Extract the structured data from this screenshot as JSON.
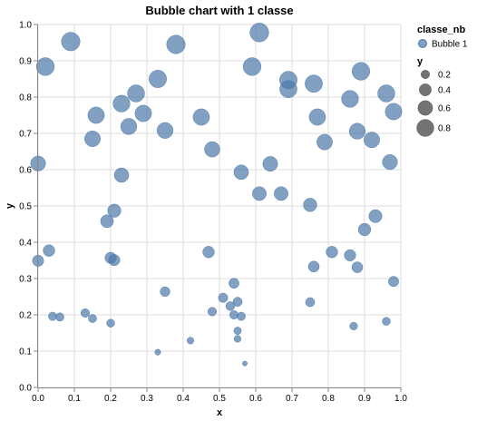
{
  "chart_data": {
    "type": "scatter",
    "title": "Bubble chart with 1 classe",
    "xlabel": "x",
    "ylabel": "y",
    "xlim": [
      0,
      1
    ],
    "ylim": [
      0,
      1
    ],
    "grid": true,
    "x_ticks": [
      "0.0",
      "0.1",
      "0.2",
      "0.3",
      "0.4",
      "0.5",
      "0.6",
      "0.7",
      "0.8",
      "0.9",
      "1.0"
    ],
    "y_ticks": [
      "0.0",
      "0.1",
      "0.2",
      "0.3",
      "0.4",
      "0.5",
      "0.6",
      "0.7",
      "0.8",
      "0.9",
      "1.0"
    ],
    "size_field": "y",
    "color": "#4c78a8",
    "legend": {
      "position": "right",
      "color_title": "classe_nb",
      "color_entries": [
        "Bubble 1"
      ],
      "size_title": "y",
      "size_entries": [
        0.2,
        0.4,
        0.6,
        0.8
      ]
    },
    "series": [
      {
        "name": "Bubble 1",
        "points": [
          [
            0.09,
            0.953
          ],
          [
            0.61,
            0.978
          ],
          [
            0.38,
            0.945
          ],
          [
            0.02,
            0.884
          ],
          [
            0.59,
            0.884
          ],
          [
            0.89,
            0.871
          ],
          [
            0.33,
            0.85
          ],
          [
            0.69,
            0.847
          ],
          [
            0.76,
            0.837
          ],
          [
            0.69,
            0.822
          ],
          [
            0.27,
            0.81
          ],
          [
            0.96,
            0.81
          ],
          [
            0.86,
            0.795
          ],
          [
            0.23,
            0.782
          ],
          [
            0.16,
            0.75
          ],
          [
            0.29,
            0.755
          ],
          [
            0.45,
            0.745
          ],
          [
            0.77,
            0.745
          ],
          [
            0.98,
            0.76
          ],
          [
            0.25,
            0.719
          ],
          [
            0.35,
            0.708
          ],
          [
            0.88,
            0.706
          ],
          [
            0.15,
            0.685
          ],
          [
            0.92,
            0.682
          ],
          [
            0.79,
            0.676
          ],
          [
            0.48,
            0.656
          ],
          [
            0.0,
            0.617
          ],
          [
            0.64,
            0.616
          ],
          [
            0.97,
            0.621
          ],
          [
            0.56,
            0.593
          ],
          [
            0.23,
            0.585
          ],
          [
            0.61,
            0.534
          ],
          [
            0.67,
            0.534
          ],
          [
            0.75,
            0.503
          ],
          [
            0.21,
            0.487
          ],
          [
            0.93,
            0.472
          ],
          [
            0.19,
            0.458
          ],
          [
            0.9,
            0.435
          ],
          [
            0.03,
            0.377
          ],
          [
            0.47,
            0.373
          ],
          [
            0.81,
            0.373
          ],
          [
            0.86,
            0.364
          ],
          [
            0.2,
            0.357
          ],
          [
            0.21,
            0.351
          ],
          [
            0.0,
            0.349
          ],
          [
            0.76,
            0.333
          ],
          [
            0.88,
            0.331
          ],
          [
            0.98,
            0.292
          ],
          [
            0.54,
            0.287
          ],
          [
            0.35,
            0.264
          ],
          [
            0.51,
            0.247
          ],
          [
            0.55,
            0.236
          ],
          [
            0.75,
            0.235
          ],
          [
            0.53,
            0.224
          ],
          [
            0.48,
            0.209
          ],
          [
            0.13,
            0.205
          ],
          [
            0.54,
            0.2
          ],
          [
            0.56,
            0.196
          ],
          [
            0.04,
            0.196
          ],
          [
            0.06,
            0.194
          ],
          [
            0.15,
            0.19
          ],
          [
            0.96,
            0.182
          ],
          [
            0.2,
            0.177
          ],
          [
            0.87,
            0.169
          ],
          [
            0.55,
            0.156
          ],
          [
            0.55,
            0.134
          ],
          [
            0.42,
            0.129
          ],
          [
            0.33,
            0.097
          ],
          [
            0.57,
            0.066
          ]
        ]
      }
    ]
  }
}
